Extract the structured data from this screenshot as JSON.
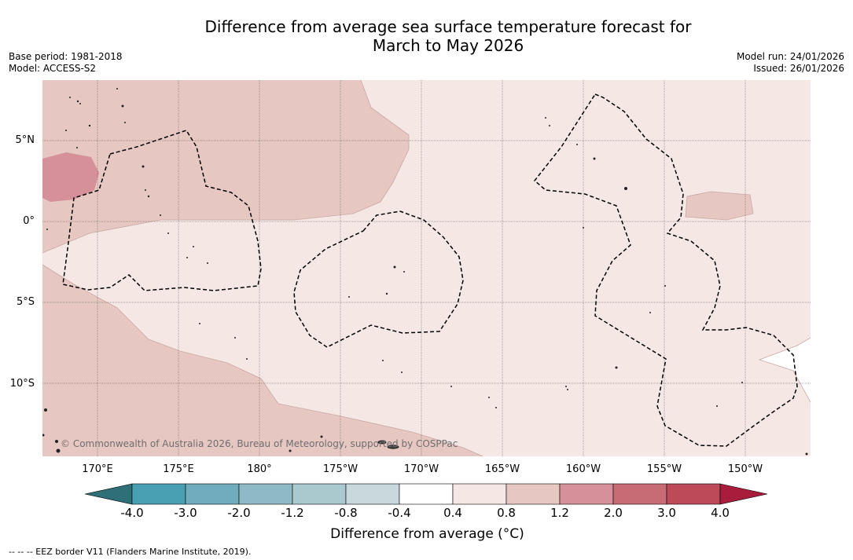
{
  "title": {
    "line1": "Difference from average sea surface temperature forecast for",
    "line2": "March to May 2026"
  },
  "meta": {
    "base_period": "Base period: 1981-2018",
    "model": "Model: ACCESS-S2",
    "model_run": "Model run: 24/01/2026",
    "issued": "Issued: 26/01/2026"
  },
  "map": {
    "lat_labels": [
      "5°N",
      "0°",
      "5°S",
      "10°S"
    ],
    "lon_labels": [
      "170°E",
      "175°E",
      "180°",
      "175°W",
      "170°W",
      "165°W",
      "160°W",
      "155°W",
      "150°W"
    ],
    "copyright": "© Commonwealth of Australia 2026, Bureau of Meteorology, supported by COSPPac",
    "colors": {
      "ocean_base": "#f4e7e4",
      "anomaly_0_8_1_2": "#e7c7c2",
      "anomaly_1_2_2_0": "#d5909a",
      "eez_line": "#000000",
      "land": "#333333"
    }
  },
  "colorbar": {
    "tick_labels": [
      "-4.0",
      "-3.0",
      "-2.0",
      "-1.2",
      "-0.8",
      "-0.4",
      "0.4",
      "0.8",
      "1.2",
      "2.0",
      "3.0",
      "4.0"
    ],
    "colors": [
      "#2f6f78",
      "#4aa0b3",
      "#6fadbe",
      "#8fbac5",
      "#a9c9ce",
      "#c8d8dc",
      "#ffffff",
      "#f4e7e4",
      "#e7c7c2",
      "#d5909a",
      "#c76b75",
      "#bc4a58",
      "#a81c3c"
    ],
    "title": "Difference from average (°C)"
  },
  "legend": {
    "eez": "--  --  -- EEZ border V11 (Flanders Marine Institute, 2019)."
  }
}
